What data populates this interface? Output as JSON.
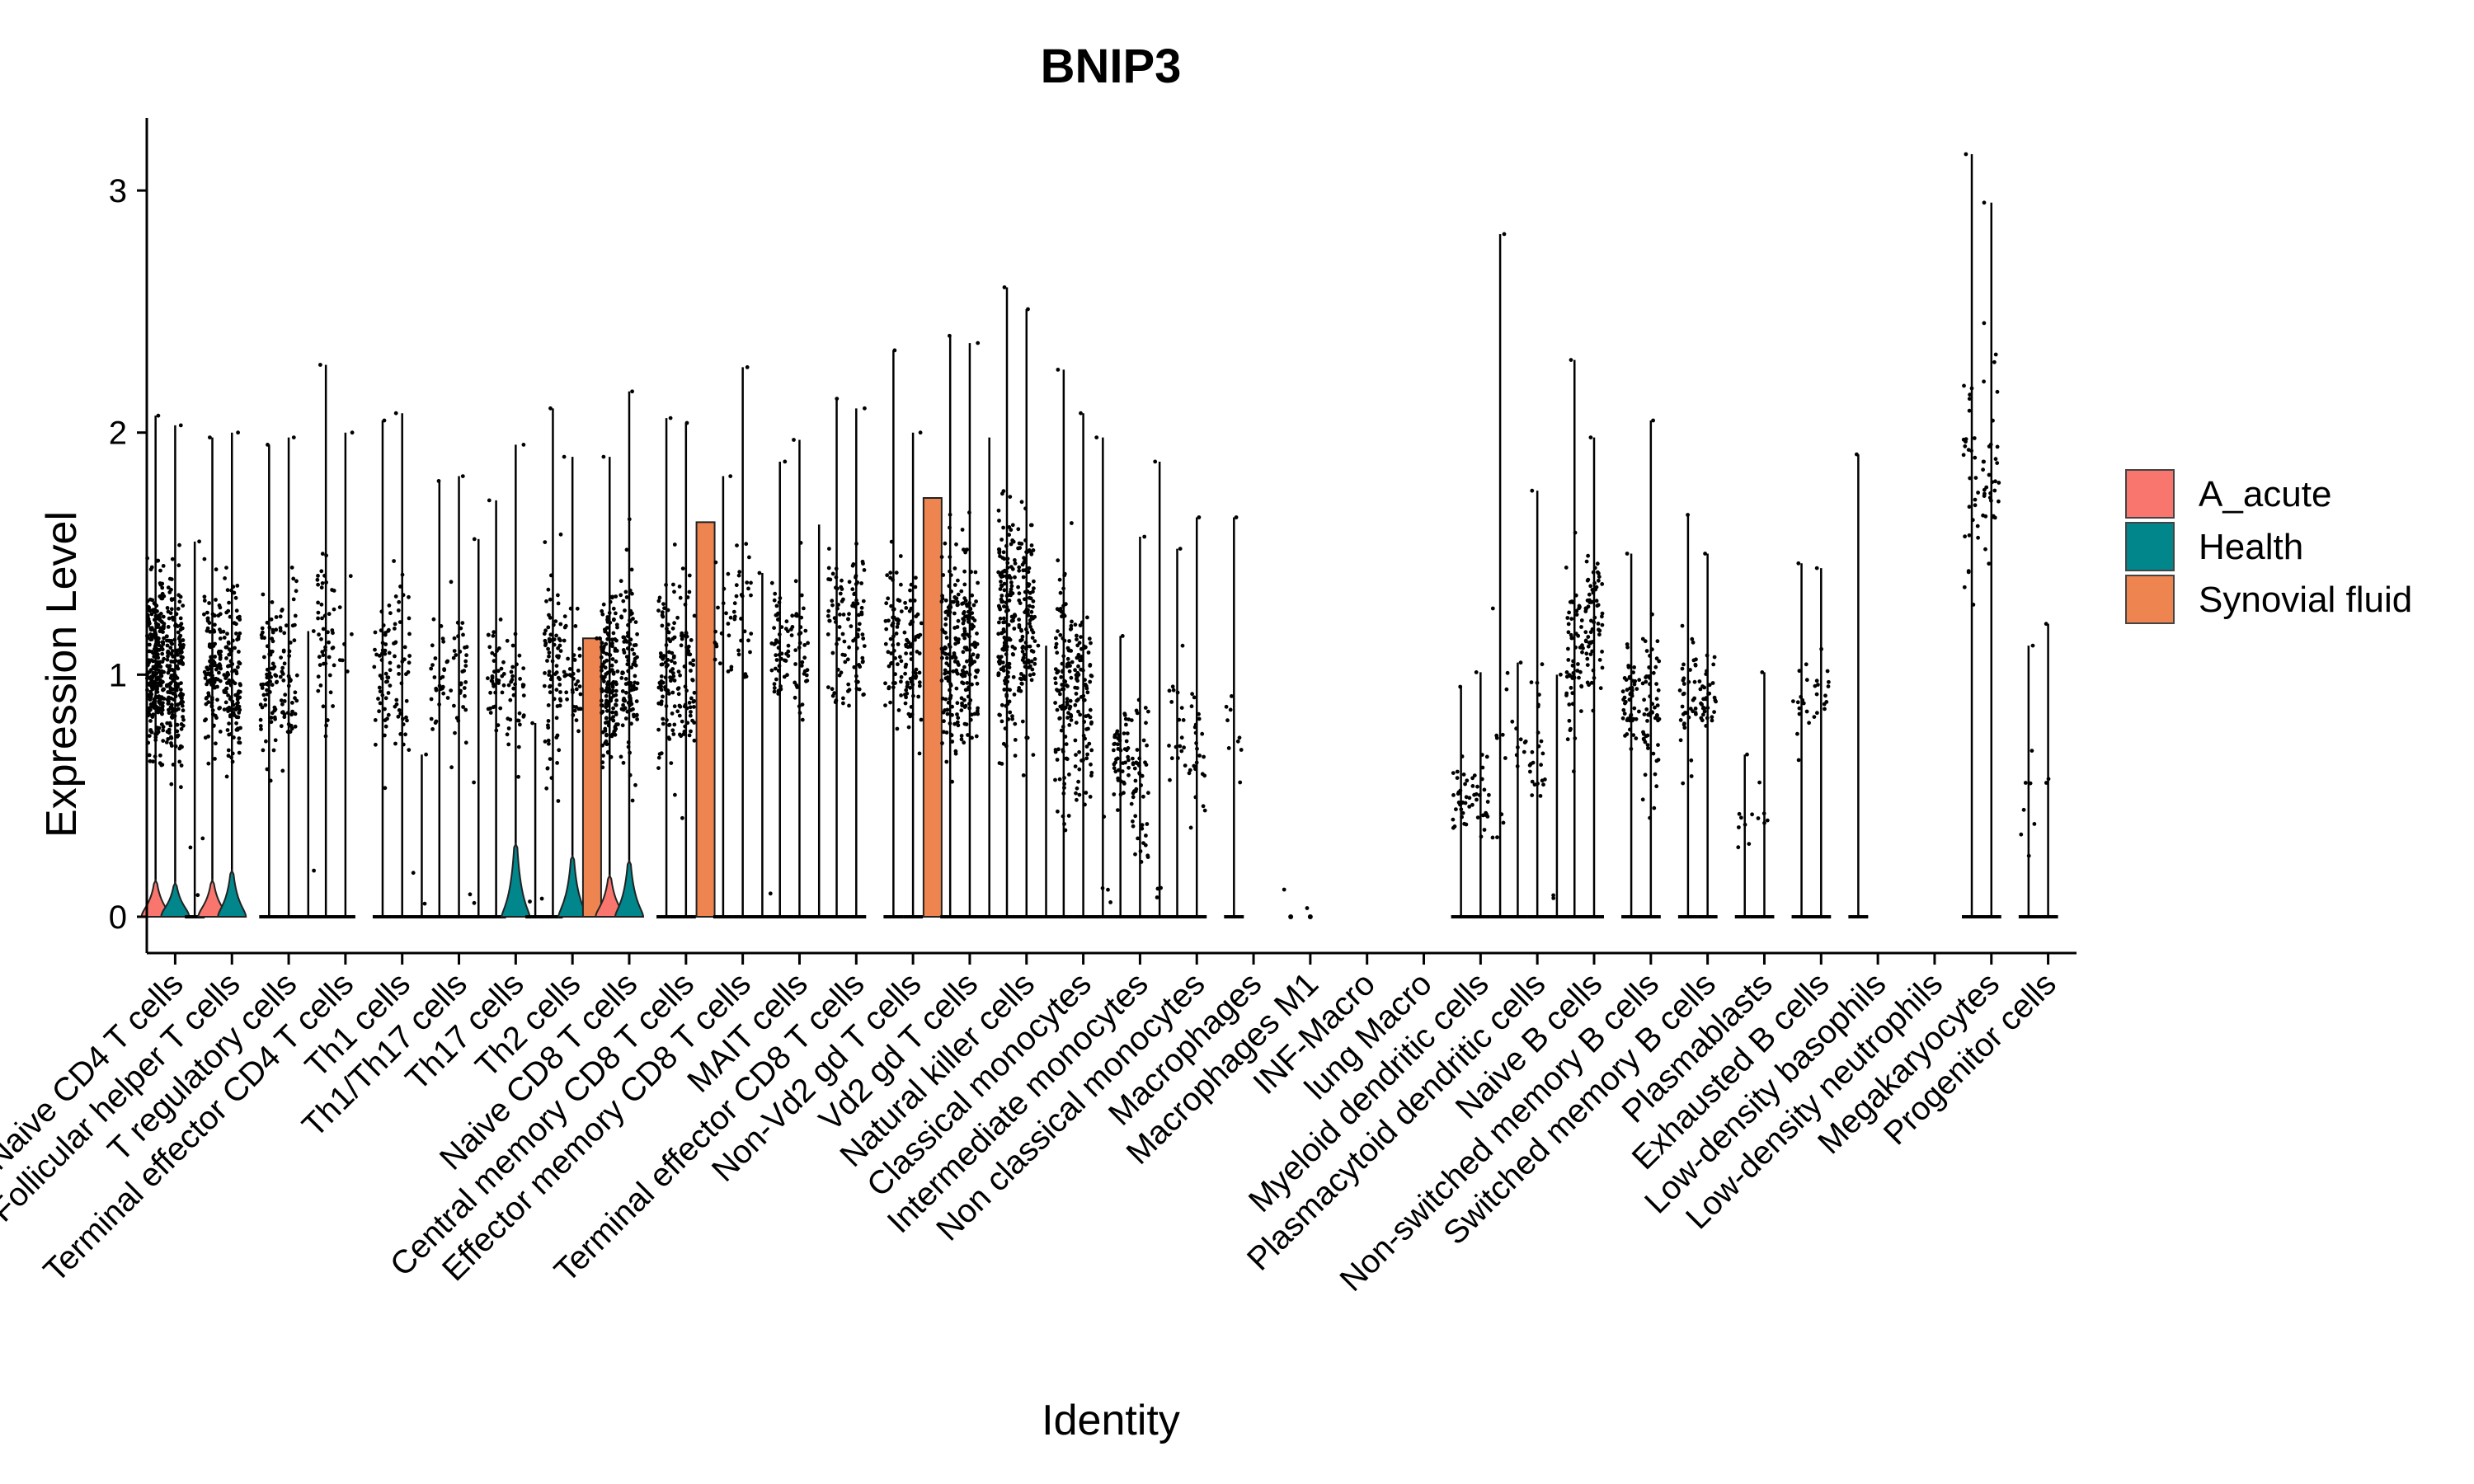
{
  "chart_data": {
    "type": "violin",
    "title": "BNIP3",
    "xlabel": "Identity",
    "ylabel": "Expression Level",
    "ylim": [
      -0.15,
      3.3
    ],
    "yticks": [
      0,
      1,
      2,
      3
    ],
    "grid": false,
    "legend_position": "right",
    "legend": [
      {
        "name": "A_acute",
        "color": "#F8766D"
      },
      {
        "name": "Health",
        "color": "#00868B"
      },
      {
        "name": "Synovial fluid",
        "color": "#EE8550"
      }
    ],
    "groups": [
      "A_acute",
      "Health",
      "Synovial fluid"
    ],
    "categories": [
      "Naive CD4 T cells",
      "Follicular helper T cells",
      "T regulatory cells",
      "Terminal effector CD4 T cells",
      "Th1 cells",
      "Th1/Th17 cells",
      "Th17 cells",
      "Th2 cells",
      "Naive CD8 T cells",
      "Central memory CD8 T cells",
      "Effector memory CD8 T cells",
      "MAIT cells",
      "Terminal effector CD8 T cells",
      "Non-Vd2 gd T cells",
      "Vd2 gd T cells",
      "Natural killer cells",
      "Classical monocytes",
      "Intermediate monocytes",
      "Non classical monocytes",
      "Macrophages",
      "Macrophages M1",
      "INF-Macro",
      "lung Macro",
      "Myeloid dendritic cells",
      "Plasmacytoid dendritic cells",
      "Naive B cells",
      "Non-switched memory B cells",
      "Switched memory B cells",
      "Plasmablasts",
      "Exhausted B cells",
      "Low-density basophils",
      "Low-density neutrophils",
      "Megakaryocytes",
      "Progenitor cells"
    ],
    "max_values": [
      [
        2.07,
        2.03,
        1.55
      ],
      [
        1.98,
        2.0,
        0
      ],
      [
        1.95,
        1.98,
        1.18
      ],
      [
        2.28,
        2.0,
        0
      ],
      [
        2.05,
        2.08,
        0.67
      ],
      [
        1.8,
        1.82,
        1.56
      ],
      [
        1.72,
        1.95,
        0.8
      ],
      [
        2.1,
        1.9,
        1.15
      ],
      [
        1.9,
        2.17,
        0
      ],
      [
        2.06,
        2.04,
        1.63
      ],
      [
        1.82,
        2.27,
        1.42
      ],
      [
        1.88,
        1.97,
        1.62
      ],
      [
        2.14,
        2.1,
        0
      ],
      [
        2.34,
        2.0,
        1.73
      ],
      [
        2.4,
        2.37,
        1.98
      ],
      [
        2.6,
        2.51,
        1.12
      ],
      [
        2.26,
        2.08,
        1.98
      ],
      [
        1.16,
        1.57,
        1.88
      ],
      [
        1.52,
        1.65,
        0
      ],
      [
        1.65,
        0,
        0
      ],
      [
        0,
        0,
        0
      ],
      [
        0,
        0,
        0
      ],
      [
        0,
        0,
        0
      ],
      [
        0.95,
        1.01,
        2.82
      ],
      [
        1.05,
        1.76,
        1.0
      ],
      [
        2.3,
        1.98,
        0
      ],
      [
        1.5,
        2.05,
        0
      ],
      [
        1.66,
        1.5,
        0
      ],
      [
        0.67,
        1.01,
        0
      ],
      [
        1.46,
        1.44,
        0
      ],
      [
        1.91,
        0,
        0
      ],
      [
        0,
        0,
        0
      ],
      [
        3.15,
        2.95,
        0
      ],
      [
        1.12,
        1.21,
        0
      ]
    ],
    "median_values": [
      [
        1.05,
        1.0,
        0
      ],
      [
        1.0,
        1.0,
        0
      ],
      [
        1.0,
        1.0,
        0
      ],
      [
        1.2,
        1.2,
        0
      ],
      [
        1.0,
        1.0,
        0
      ],
      [
        1.0,
        1.0,
        0
      ],
      [
        1.0,
        0.95,
        0
      ],
      [
        1.0,
        1.0,
        1.15
      ],
      [
        1.0,
        1.0,
        0
      ],
      [
        1.0,
        1.0,
        1.63
      ],
      [
        1.2,
        1.3,
        0
      ],
      [
        1.1,
        1.1,
        0
      ],
      [
        1.2,
        1.2,
        0
      ],
      [
        1.15,
        1.1,
        1.73
      ],
      [
        1.1,
        1.1,
        0
      ],
      [
        1.2,
        1.2,
        0
      ],
      [
        0.95,
        0.9,
        0
      ],
      [
        0.65,
        0.6,
        0
      ],
      [
        0.75,
        0.7,
        0
      ],
      [
        0.8,
        0,
        0
      ],
      [
        0,
        0,
        0
      ],
      [
        0,
        0,
        0
      ],
      [
        0,
        0,
        0
      ],
      [
        0.5,
        0.5,
        0.6
      ],
      [
        0.7,
        0.7,
        0
      ],
      [
        1.1,
        1.2,
        0
      ],
      [
        0.9,
        0.9,
        0
      ],
      [
        0.9,
        0.9,
        0
      ],
      [
        0.35,
        0.45,
        0
      ],
      [
        0.9,
        0.9,
        0
      ],
      [
        0,
        0,
        0
      ],
      [
        0,
        0,
        0
      ],
      [
        1.8,
        1.9,
        0
      ],
      [
        0.5,
        0.6,
        0
      ]
    ],
    "violin_heights": [
      [
        0.15,
        0.14,
        0
      ],
      [
        0.15,
        0.19,
        0
      ],
      [
        0,
        0,
        0
      ],
      [
        0,
        0,
        0
      ],
      [
        0,
        0,
        0
      ],
      [
        0,
        0,
        0
      ],
      [
        0,
        0.3,
        0
      ],
      [
        0,
        0.25,
        1.15
      ],
      [
        0.17,
        0.23,
        0
      ],
      [
        0,
        0,
        1.63
      ],
      [
        0,
        0,
        0
      ],
      [
        0,
        0,
        0
      ],
      [
        0,
        0,
        0
      ],
      [
        0,
        0,
        1.73
      ],
      [
        0,
        0,
        0
      ],
      [
        0,
        0,
        0
      ],
      [
        0,
        0,
        0
      ],
      [
        0,
        0,
        0
      ],
      [
        0,
        0,
        0
      ],
      [
        0,
        0,
        0
      ],
      [
        0,
        0,
        0
      ],
      [
        0,
        0,
        0
      ],
      [
        0,
        0,
        0
      ],
      [
        0,
        0,
        0
      ],
      [
        0,
        0,
        0
      ],
      [
        0,
        0,
        0
      ],
      [
        0,
        0,
        0
      ],
      [
        0,
        0,
        0
      ],
      [
        0,
        0,
        0
      ],
      [
        0,
        0,
        0
      ],
      [
        0,
        0,
        0
      ],
      [
        0,
        0,
        0
      ],
      [
        0,
        0,
        0
      ],
      [
        0,
        0,
        0
      ]
    ],
    "dot_density": [
      [
        260,
        200,
        4
      ],
      [
        120,
        130,
        0
      ],
      [
        70,
        60,
        2
      ],
      [
        50,
        8,
        0
      ],
      [
        50,
        45,
        3
      ],
      [
        30,
        35,
        4
      ],
      [
        40,
        35,
        3
      ],
      [
        80,
        40,
        2
      ],
      [
        150,
        110,
        0
      ],
      [
        90,
        70,
        0
      ],
      [
        20,
        30,
        2
      ],
      [
        50,
        40,
        0
      ],
      [
        50,
        60,
        0
      ],
      [
        60,
        70,
        0
      ],
      [
        120,
        120,
        0
      ],
      [
        160,
        120,
        1
      ],
      [
        110,
        90,
        5
      ],
      [
        50,
        50,
        4
      ],
      [
        20,
        25,
        0
      ],
      [
        10,
        0,
        0
      ],
      [
        1,
        1,
        0
      ],
      [
        0,
        0,
        0
      ],
      [
        0,
        0,
        0
      ],
      [
        30,
        25,
        12
      ],
      [
        10,
        25,
        3
      ],
      [
        60,
        70,
        0
      ],
      [
        50,
        60,
        0
      ],
      [
        40,
        35,
        0
      ],
      [
        8,
        6,
        0
      ],
      [
        15,
        15,
        0
      ],
      [
        1,
        0,
        0
      ],
      [
        0,
        0,
        0
      ],
      [
        30,
        35,
        0
      ],
      [
        8,
        3,
        0
      ]
    ]
  }
}
